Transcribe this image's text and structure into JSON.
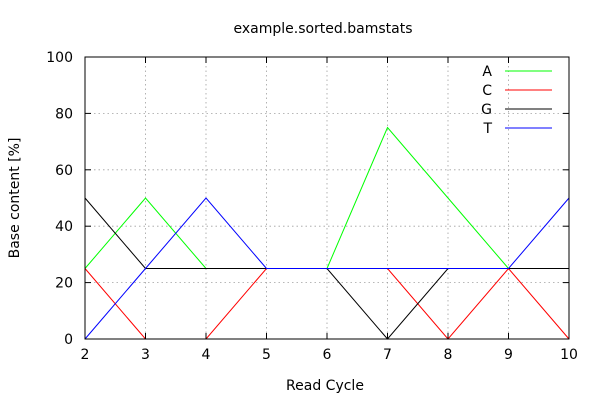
{
  "chart_data": {
    "type": "line",
    "title": "example.sorted.bamstats",
    "xlabel": "Read Cycle",
    "ylabel": "Base content [%]",
    "x": [
      2,
      3,
      4,
      5,
      6,
      7,
      8,
      9,
      10
    ],
    "xlim": [
      2,
      10
    ],
    "ylim": [
      0,
      100
    ],
    "xticks": [
      2,
      3,
      4,
      5,
      6,
      7,
      8,
      9,
      10
    ],
    "yticks": [
      0,
      20,
      40,
      60,
      80,
      100
    ],
    "grid": true,
    "legend_position": "top-right",
    "series": [
      {
        "name": "A",
        "color": "#00ff00",
        "values": [
          25,
          50,
          25,
          25,
          25,
          75,
          50,
          25,
          25
        ]
      },
      {
        "name": "C",
        "color": "#ff0000",
        "values": [
          25,
          0,
          0,
          25,
          25,
          25,
          0,
          25,
          0
        ]
      },
      {
        "name": "G",
        "color": "#000000",
        "values": [
          50,
          25,
          25,
          25,
          25,
          0,
          25,
          25,
          25
        ]
      },
      {
        "name": "T",
        "color": "#0000ff",
        "values": [
          0,
          25,
          50,
          25,
          25,
          25,
          25,
          25,
          50
        ]
      }
    ]
  }
}
